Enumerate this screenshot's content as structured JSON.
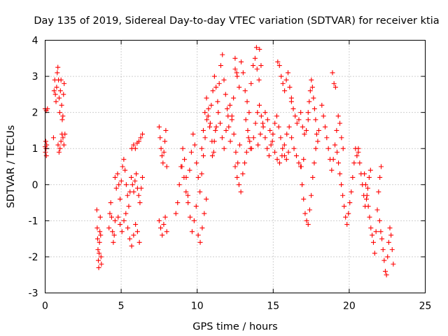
{
  "chart_data": {
    "type": "scatter",
    "title": "Day 135 of 2019, Sidereal Day-to-day VTEC variation (SDTVAR) for receiver ktia",
    "xlabel": "GPS time / hours",
    "ylabel": "SDTVAR / TECUs",
    "xlim": [
      0,
      25
    ],
    "ylim": [
      -3,
      4
    ],
    "xticks": [
      0,
      5,
      10,
      15,
      20,
      25
    ],
    "yticks": [
      -3,
      -2,
      -1,
      0,
      1,
      2,
      3,
      4
    ],
    "grid": true,
    "marker": "+",
    "color": "#ff0000",
    "series": [
      {
        "name": "SDTVAR",
        "segments": [
          {
            "x0": 0.0,
            "x1": 0.1,
            "y": [
              1.05,
              0.9,
              1.2,
              1.0,
              0.8,
              1.1
            ]
          },
          {
            "x0": 0.0,
            "x1": 0.15,
            "y": [
              2.1,
              2.05,
              2.1
            ]
          },
          {
            "x0": 0.55,
            "x1": 1.25,
            "y": [
              1.3,
              2.6,
              2.9,
              2.5,
              2.3,
              2.7,
              3.1,
              3.25,
              2.9,
              2.4,
              2.0,
              2.6,
              2.9,
              2.2,
              1.8,
              1.9,
              2.5,
              2.8
            ]
          },
          {
            "x0": 0.85,
            "x1": 1.3,
            "y": [
              1.1,
              0.9,
              1.0,
              1.2,
              1.4,
              1.3,
              1.1,
              1.4
            ]
          },
          {
            "x0": 3.4,
            "x1": 3.7,
            "y": [
              -0.7,
              -1.2,
              -1.5,
              -1.8,
              -2.1,
              -2.3,
              -1.9,
              -1.6,
              -1.3,
              -0.9,
              -1.4,
              -2.0,
              -2.2
            ]
          },
          {
            "x0": 4.2,
            "x1": 4.6,
            "y": [
              -1.2,
              -0.8,
              -0.5,
              -0.9,
              -1.3,
              -1.6,
              -1.4,
              -1.0
            ]
          },
          {
            "x0": 4.6,
            "x1": 6.4,
            "y": [
              0.2,
              -0.1,
              0.3,
              0.0,
              -0.4,
              0.1,
              0.5,
              0.7,
              0.4,
              0.0,
              -0.3,
              -0.6,
              -0.2,
              0.2,
              0.0,
              -0.2,
              0.1,
              0.3,
              -0.1,
              -0.3,
              -0.5,
              -0.1,
              0.2
            ]
          },
          {
            "x0": 4.8,
            "x1": 6.2,
            "y": [
              -0.9,
              -1.1,
              -1.3,
              -1.0,
              -0.8,
              -1.2,
              -1.5,
              -1.7,
              -1.4,
              -1.1,
              -1.3,
              -1.6
            ]
          },
          {
            "x0": 5.7,
            "x1": 6.4,
            "y": [
              1.0,
              1.1,
              1.0,
              1.15,
              1.2,
              1.3,
              1.4
            ]
          },
          {
            "x0": 7.5,
            "x1": 8.0,
            "y": [
              1.6,
              1.3,
              1.0,
              0.8,
              0.6,
              0.9,
              1.2,
              1.5,
              0.5
            ]
          },
          {
            "x0": 7.5,
            "x1": 8.0,
            "y": [
              -1.0,
              -1.2,
              -1.4,
              -1.1,
              -0.9,
              -1.3
            ]
          },
          {
            "x0": 8.6,
            "x1": 11.2,
            "y": [
              -0.8,
              -0.5,
              0.0,
              0.5,
              1.0,
              0.7,
              0.2,
              -0.3,
              0.4,
              0.9,
              1.4,
              1.1,
              0.6,
              0.2,
              -0.2,
              0.3,
              0.8,
              1.3,
              1.8,
              2.1,
              1.7,
              1.2,
              0.9,
              1.5
            ]
          },
          {
            "x0": 9.0,
            "x1": 10.6,
            "y": [
              0.5,
              0.2,
              -0.2,
              -0.5,
              -0.9,
              -1.3,
              -1.0,
              -0.6,
              -1.4,
              -1.6,
              -1.2,
              -0.8,
              -0.4
            ]
          },
          {
            "x0": 10.3,
            "x1": 12.6,
            "y": [
              1.0,
              1.5,
              2.0,
              2.4,
              1.9,
              1.6,
              2.2,
              2.6,
              3.0,
              2.7,
              2.3,
              2.8,
              3.3,
              3.6,
              2.9,
              2.5,
              2.1,
              1.6,
              1.2,
              1.9,
              2.4,
              3.5,
              3.1
            ]
          },
          {
            "x0": 11.0,
            "x1": 12.8,
            "y": [
              0.8,
              1.2,
              1.6,
              2.0,
              1.7,
              1.3,
              1.0,
              1.5,
              1.9,
              2.2,
              1.8,
              1.4,
              0.9,
              0.6,
              1.1
            ]
          },
          {
            "x0": 12.5,
            "x1": 14.2,
            "y": [
              3.2,
              3.0,
              2.7,
              3.4,
              3.1,
              2.6,
              2.3,
              2.0,
              2.8,
              3.3,
              3.5,
              3.2,
              2.9,
              3.3
            ]
          },
          {
            "x0": 12.5,
            "x1": 13.5,
            "y": [
              0.5,
              0.2,
              0.0,
              -0.2,
              0.3,
              0.6,
              0.9,
              1.3,
              1.0
            ]
          },
          {
            "x0": 13.9,
            "x1": 14.1,
            "y": [
              3.8,
              3.75
            ]
          },
          {
            "x0": 13.2,
            "x1": 16.0,
            "y": [
              1.8,
              1.5,
              1.2,
              1.0,
              1.3,
              1.7,
              2.0,
              2.2,
              1.9,
              1.6,
              1.3,
              1.0,
              0.8,
              1.1,
              1.4,
              1.7,
              1.9,
              1.6,
              1.3,
              1.0,
              0.8,
              0.7,
              0.9
            ]
          },
          {
            "x0": 14.0,
            "x1": 17.0,
            "y": [
              1.1,
              1.4,
              1.7,
              2.0,
              1.8,
              1.5,
              1.2,
              0.9,
              0.7,
              0.6,
              0.8,
              1.1,
              1.4,
              1.6,
              1.3,
              1.0,
              0.8,
              0.6,
              0.5,
              0.7
            ]
          },
          {
            "x0": 15.3,
            "x1": 16.2,
            "y": [
              3.4,
              3.3,
              3.0,
              2.8,
              2.6,
              2.9,
              3.1,
              2.7,
              2.4
            ]
          },
          {
            "x0": 16.2,
            "x1": 17.3,
            "y": [
              2.3,
              2.1,
              1.9,
              1.7,
              1.8,
              2.0,
              1.6,
              1.4,
              1.5,
              1.8
            ]
          },
          {
            "x0": 16.8,
            "x1": 17.8,
            "y": [
              0.5,
              0.0,
              -0.4,
              -0.8,
              -1.0,
              -1.1,
              -0.7,
              -0.3,
              0.2,
              0.6,
              1.0
            ]
          },
          {
            "x0": 17.3,
            "x1": 18.0,
            "y": [
              2.0,
              2.3,
              2.6,
              2.9,
              2.7,
              2.4,
              2.1,
              1.8,
              1.4,
              1.2,
              1.5
            ]
          },
          {
            "x0": 18.2,
            "x1": 19.6,
            "y": [
              2.2,
              1.9,
              1.6,
              1.3,
              1.0,
              0.7,
              0.4,
              0.7,
              1.1,
              1.5,
              1.9,
              1.7,
              1.3,
              1.0
            ]
          },
          {
            "x0": 18.9,
            "x1": 19.1,
            "y": [
              3.1,
              2.8,
              2.7
            ]
          },
          {
            "x0": 19.2,
            "x1": 20.6,
            "y": [
              0.9,
              0.6,
              0.3,
              0.0,
              -0.3,
              -0.6,
              -0.9,
              -1.1,
              -0.8,
              -0.5,
              -0.2,
              0.2,
              0.6,
              1.0,
              0.8,
              1.0
            ]
          },
          {
            "x0": 20.6,
            "x1": 21.4,
            "y": [
              0.9,
              0.6,
              0.3,
              0.0,
              -0.3,
              -0.6,
              -0.4,
              -0.1,
              0.2,
              0.4
            ]
          },
          {
            "x0": 21.0,
            "x1": 22.1,
            "y": [
              0.3,
              0.0,
              -0.3,
              -0.6,
              -0.9,
              -1.2,
              -1.4,
              -1.6,
              -1.9,
              -1.3,
              -0.7,
              -0.2,
              0.2,
              0.5
            ]
          },
          {
            "x0": 22.0,
            "x1": 22.9,
            "y": [
              -1.0,
              -1.3,
              -1.5,
              -1.8,
              -2.1,
              -2.4,
              -2.5,
              -2.0,
              -1.6,
              -1.2,
              -1.4,
              -1.8,
              -2.2
            ]
          }
        ]
      }
    ]
  }
}
